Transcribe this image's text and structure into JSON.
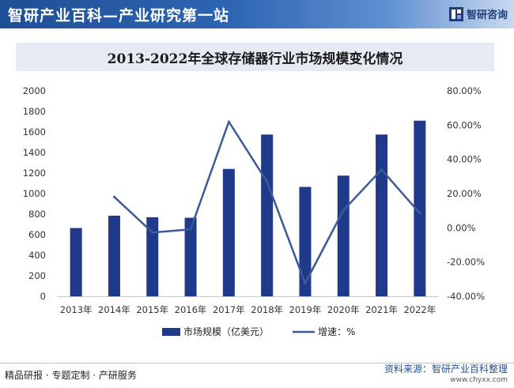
{
  "header": {
    "title": "智研产业百科—产业研究第一站",
    "brand": "智研咨询"
  },
  "footer": {
    "left": "精品研报 · 专题定制 · 产研服务",
    "source": "资料来源：智研产业百科整理",
    "url": "www.chyxx.com"
  },
  "colors": {
    "bar": "#1f3a8a",
    "line": "#3a5a98"
  },
  "chart_data": {
    "type": "bar+line",
    "title": "2013-2022年全球存储器行业市场规模变化情况",
    "categories": [
      "2013年",
      "2014年",
      "2015年",
      "2016年",
      "2017年",
      "2018年",
      "2019年",
      "2020年",
      "2021年",
      "2022年"
    ],
    "series": [
      {
        "name": "市场规模（亿美元）",
        "type": "bar",
        "axis": "left",
        "values": [
          665,
          785,
          770,
          765,
          1240,
          1575,
          1065,
          1175,
          1575,
          1710
        ]
      },
      {
        "name": "增速：%",
        "type": "line",
        "axis": "right",
        "values": [
          null,
          18.1,
          -2.7,
          -0.9,
          62.0,
          27.0,
          -32.4,
          10.3,
          34.0,
          8.6
        ]
      }
    ],
    "y_left": {
      "min": 0,
      "max": 2000,
      "step": 200,
      "ticks": [
        "0",
        "200",
        "400",
        "600",
        "800",
        "1000",
        "1200",
        "1400",
        "1600",
        "1800",
        "2000"
      ]
    },
    "y_right": {
      "min": -40,
      "max": 80,
      "step": 20,
      "ticks": [
        "-40.00%",
        "-20.00%",
        "0.00%",
        "20.00%",
        "40.00%",
        "60.00%",
        "80.00%"
      ]
    },
    "legend": [
      "市场规模（亿美元）",
      "增速：%"
    ]
  }
}
